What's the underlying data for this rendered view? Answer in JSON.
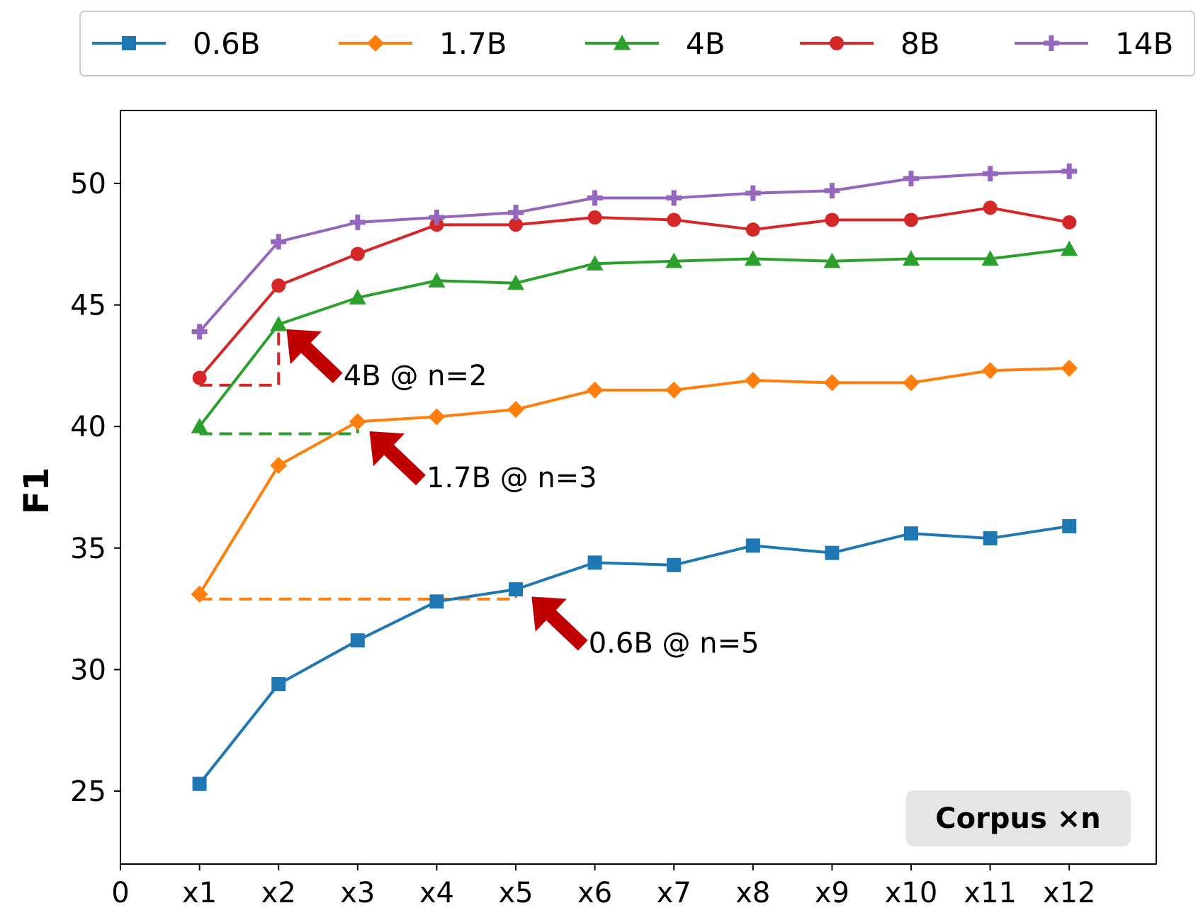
{
  "chart_data": {
    "type": "line",
    "title": "",
    "xlabel": "",
    "ylabel": "F1",
    "xlim": [
      0,
      13.1
    ],
    "ylim": [
      22,
      53
    ],
    "x_ticks": [
      0,
      1,
      2,
      3,
      4,
      5,
      6,
      7,
      8,
      9,
      10,
      11,
      12
    ],
    "x_tick_labels": [
      "0",
      "x1",
      "x2",
      "x3",
      "x4",
      "x5",
      "x6",
      "x7",
      "x8",
      "x9",
      "x10",
      "x11",
      "x12"
    ],
    "y_ticks": [
      25,
      30,
      35,
      40,
      45,
      50
    ],
    "y_tick_labels": [
      "25",
      "30",
      "35",
      "40",
      "45",
      "50"
    ],
    "grid": false,
    "legend_position": "top-outside",
    "x": [
      1,
      2,
      3,
      4,
      5,
      6,
      7,
      8,
      9,
      10,
      11,
      12
    ],
    "series": [
      {
        "name": "0.6B",
        "color": "#1f77b4",
        "marker": "square",
        "values": [
          25.3,
          29.4,
          31.2,
          32.8,
          33.3,
          34.4,
          34.3,
          35.1,
          34.8,
          35.6,
          35.4,
          35.9
        ]
      },
      {
        "name": "1.7B",
        "color": "#ff7f0e",
        "marker": "diamond",
        "values": [
          33.1,
          38.4,
          40.2,
          40.4,
          40.7,
          41.5,
          41.5,
          41.9,
          41.8,
          41.8,
          42.3,
          42.4
        ]
      },
      {
        "name": "4B",
        "color": "#2ca02c",
        "marker": "triangle",
        "values": [
          40.0,
          44.2,
          45.3,
          46.0,
          45.9,
          46.7,
          46.8,
          46.9,
          46.8,
          46.9,
          46.9,
          47.3
        ]
      },
      {
        "name": "8B",
        "color": "#d62728",
        "marker": "circle",
        "values": [
          42.0,
          45.8,
          47.1,
          48.3,
          48.3,
          48.6,
          48.5,
          48.1,
          48.5,
          48.5,
          49.0,
          48.4
        ]
      },
      {
        "name": "14B",
        "color": "#9467bd",
        "marker": "plus",
        "values": [
          43.9,
          47.6,
          48.4,
          48.6,
          48.8,
          49.4,
          49.4,
          49.6,
          49.7,
          50.2,
          50.4,
          50.5
        ]
      }
    ],
    "reference_lines": [
      {
        "color": "#d62728",
        "y": 41.7,
        "x_from": 1,
        "x_to": 2,
        "y_top": 44.2
      },
      {
        "color": "#2ca02c",
        "y": 39.7,
        "x_from": 1,
        "x_to": 3,
        "y_top": 40.2
      },
      {
        "color": "#ff7f0e",
        "y": 32.9,
        "x_from": 1,
        "x_to": 5,
        "y_top": 33.3
      }
    ],
    "annotations": [
      {
        "text": "4B @ n=2",
        "arrow_target": [
          2.1,
          44.0
        ]
      },
      {
        "text": "1.7B @ n=3",
        "arrow_target": [
          3.15,
          39.8
        ]
      },
      {
        "text": "0.6B @ n=5",
        "arrow_target": [
          5.2,
          33.0
        ]
      }
    ],
    "corner_label": "Corpus ×n",
    "arrow_color": "#c00000"
  }
}
